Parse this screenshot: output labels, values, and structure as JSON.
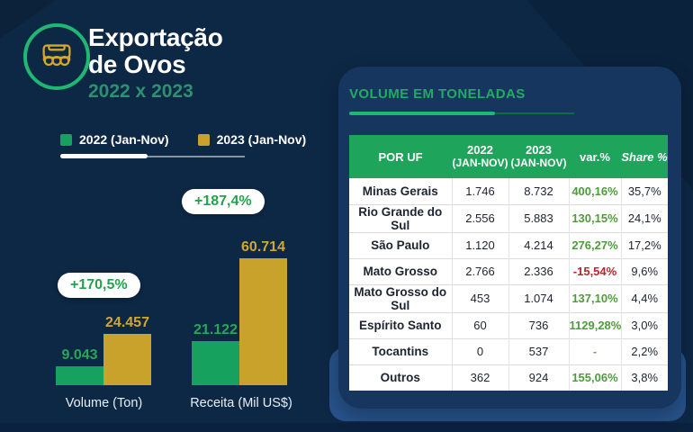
{
  "colors": {
    "background": "#0D2845",
    "panel": "#16355F",
    "accent_band": "#27528A",
    "green": "#16A15F",
    "gold": "#C9A22C",
    "green_bright": "#1FB873",
    "text_green": "#27A55B",
    "text_gold": "#D2A72E",
    "table_header_green": "#1FA45C",
    "var_positive": "#4E9B3B",
    "var_negative": "#C0202E",
    "bottom_strip": "#0B2140"
  },
  "header": {
    "title_line1": "Exportação",
    "title_line2": "de Ovos",
    "subtitle": "2022 x 2023",
    "icon": "egg-carton-icon"
  },
  "legend": {
    "items": [
      {
        "label": "2022 (Jan-Nov)",
        "color": "#16A15F"
      },
      {
        "label": "2023 (Jan-Nov)",
        "color": "#C9A22C"
      }
    ]
  },
  "chart_data": [
    {
      "type": "bar",
      "categories": [
        "Volume (Ton)",
        "Receita (Mil US$)"
      ],
      "series": [
        {
          "name": "2022 (Jan-Nov)",
          "color": "#16A15F",
          "values": [
            9043,
            21122
          ]
        },
        {
          "name": "2023 (Jan-Nov)",
          "color": "#C9A22C",
          "values": [
            24457,
            60714
          ]
        }
      ],
      "value_labels": [
        [
          "9.043",
          "21.122"
        ],
        [
          "24.457",
          "60.714"
        ]
      ],
      "growth_badges": [
        "+170,5%",
        "+187,4%"
      ],
      "title": "Exportação de Ovos 2022 x 2023",
      "xlabel": "",
      "ylabel": "",
      "legend_position": "top-left",
      "grid": false,
      "axes_hidden": true
    },
    {
      "type": "table",
      "title": "VOLUME EM TONELADAS",
      "columns": [
        "POR UF",
        "2022 (JAN-NOV)",
        "2023 (JAN-NOV)",
        "var.%",
        "Share %"
      ],
      "rows": [
        [
          "Minas Gerais",
          1746,
          8732,
          400.16,
          35.7
        ],
        [
          "Rio Grande do Sul",
          2556,
          5883,
          130.15,
          24.1
        ],
        [
          "São Paulo",
          1120,
          4214,
          276.27,
          17.2
        ],
        [
          "Mato Grosso",
          2766,
          2336,
          -15.54,
          9.6
        ],
        [
          "Mato Grosso do Sul",
          453,
          1074,
          137.1,
          4.4
        ],
        [
          "Espírito Santo",
          60,
          736,
          1129.28,
          3.0
        ],
        [
          "Tocantins",
          0,
          537,
          null,
          2.2
        ],
        [
          "Outros",
          362,
          924,
          155.06,
          3.8
        ]
      ]
    }
  ],
  "panel": {
    "title": "VOLUME EM TONELADAS",
    "table": {
      "columns": [
        {
          "label": "POR UF",
          "sub": ""
        },
        {
          "label": "2022",
          "sub": "(JAN-NOV)"
        },
        {
          "label": "2023",
          "sub": "(JAN-NOV)"
        },
        {
          "label": "var.%",
          "sub": ""
        },
        {
          "label": "Share %",
          "sub": "",
          "italic": true
        }
      ],
      "rows": [
        {
          "uf": "Minas Gerais",
          "v2022": "1.746",
          "v2023": "8.732",
          "var": "400,16%",
          "trend": "up",
          "share": "35,7%"
        },
        {
          "uf": "Rio Grande do Sul",
          "v2022": "2.556",
          "v2023": "5.883",
          "var": "130,15%",
          "trend": "up",
          "share": "24,1%"
        },
        {
          "uf": "São Paulo",
          "v2022": "1.120",
          "v2023": "4.214",
          "var": "276,27%",
          "trend": "up",
          "share": "17,2%"
        },
        {
          "uf": "Mato Grosso",
          "v2022": "2.766",
          "v2023": "2.336",
          "var": "-15,54%",
          "trend": "down",
          "share": "9,6%"
        },
        {
          "uf": "Mato Grosso do Sul",
          "v2022": "453",
          "v2023": "1.074",
          "var": "137,10%",
          "trend": "up",
          "share": "4,4%"
        },
        {
          "uf": "Espírito Santo",
          "v2022": "60",
          "v2023": "736",
          "var": "1129,28%",
          "trend": "up",
          "share": "3,0%"
        },
        {
          "uf": "Tocantins",
          "v2022": "0",
          "v2023": "537",
          "var": "-",
          "trend": "none",
          "share": "2,2%"
        },
        {
          "uf": "Outros",
          "v2022": "362",
          "v2023": "924",
          "var": "155,06%",
          "trend": "up",
          "share": "3,8%"
        }
      ]
    }
  }
}
